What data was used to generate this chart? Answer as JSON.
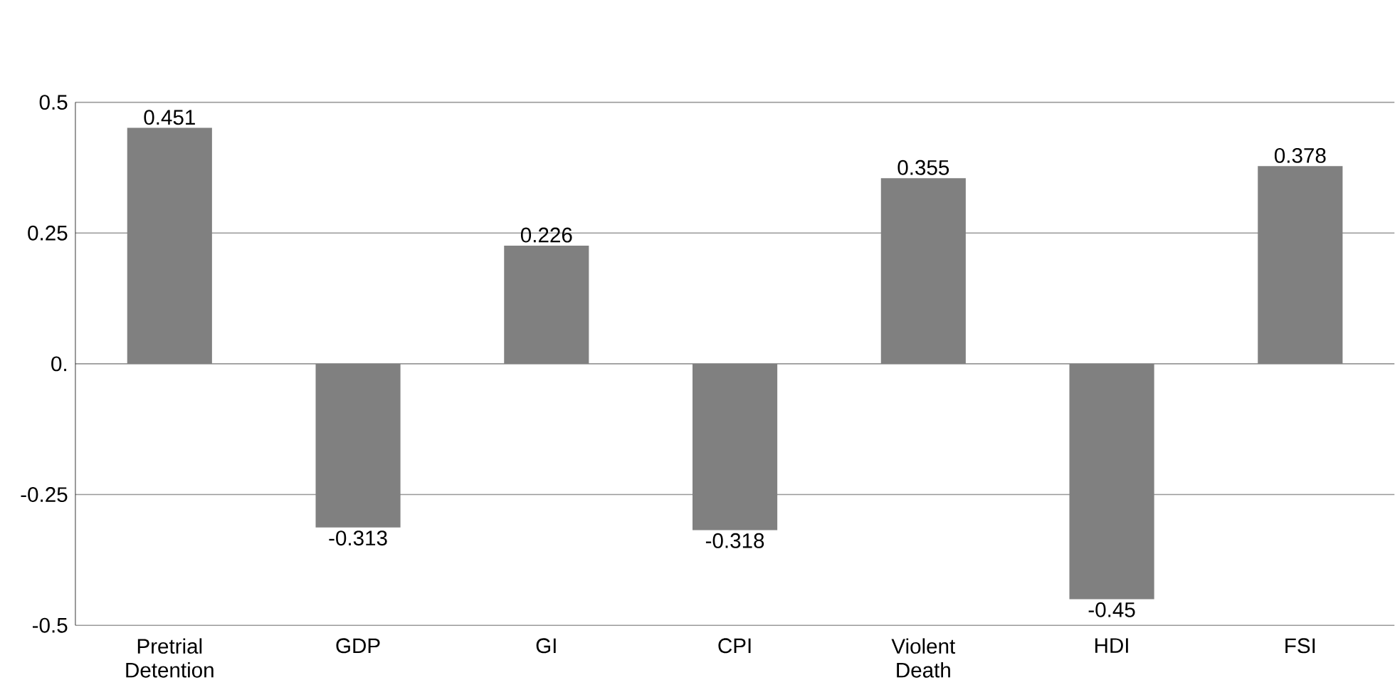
{
  "chart_data": {
    "type": "bar",
    "categories": [
      "Pretrial Detention",
      "GDP",
      "GI",
      "CPI",
      "Violent Death",
      "HDI",
      "FSI"
    ],
    "values": [
      0.451,
      -0.313,
      0.226,
      -0.318,
      0.355,
      -0.45,
      0.378
    ],
    "value_labels": [
      "0.451",
      "-0.313",
      "0.226",
      "-0.318",
      "0.355",
      "-0.45",
      "0.378"
    ],
    "color": "#808080",
    "ylim": [
      -0.5,
      0.5
    ],
    "yticks": [
      -0.5,
      -0.25,
      {
        "value": 0,
        "label": "0."
      },
      0.25,
      0.5
    ],
    "grid": "y"
  }
}
